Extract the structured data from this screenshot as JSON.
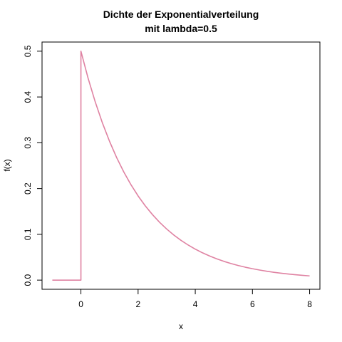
{
  "chart_data": {
    "type": "line",
    "title_line1": "Dichte der Exponentialverteilung",
    "title_line2": "mit lambda=0.5",
    "xlabel": "x",
    "ylabel": "f(x)",
    "xlim": [
      -1.36,
      8.36
    ],
    "ylim": [
      -0.02,
      0.52
    ],
    "x_ticks": [
      0,
      2,
      4,
      6,
      8
    ],
    "x_tick_labels": [
      "0",
      "2",
      "4",
      "6",
      "8"
    ],
    "y_ticks": [
      0.0,
      0.1,
      0.2,
      0.3,
      0.4,
      0.5
    ],
    "y_tick_labels": [
      "0.0",
      "0.1",
      "0.2",
      "0.3",
      "0.4",
      "0.5"
    ],
    "grid": false,
    "legend": "none",
    "line_color": "#DF82A2",
    "series": [
      {
        "x": [
          -1,
          0,
          0,
          0.25,
          0.5,
          0.75,
          1,
          1.25,
          1.5,
          1.75,
          2,
          2.25,
          2.5,
          2.75,
          3,
          3.25,
          3.5,
          3.75,
          4,
          4.25,
          4.5,
          4.75,
          5,
          5.25,
          5.5,
          5.75,
          6,
          6.25,
          6.5,
          6.75,
          7,
          7.25,
          7.5,
          7.75,
          8
        ],
        "y": [
          0,
          0,
          0.5,
          0.4412,
          0.3894,
          0.3436,
          0.3033,
          0.2676,
          0.2362,
          0.2084,
          0.1839,
          0.1623,
          0.1433,
          0.1264,
          0.1116,
          0.0985,
          0.0869,
          0.0767,
          0.0677,
          0.0597,
          0.0527,
          0.0465,
          0.041,
          0.0362,
          0.032,
          0.0282,
          0.0249,
          0.022,
          0.0194,
          0.0171,
          0.0151,
          0.0133,
          0.0118,
          0.0104,
          0.0092
        ]
      }
    ]
  }
}
